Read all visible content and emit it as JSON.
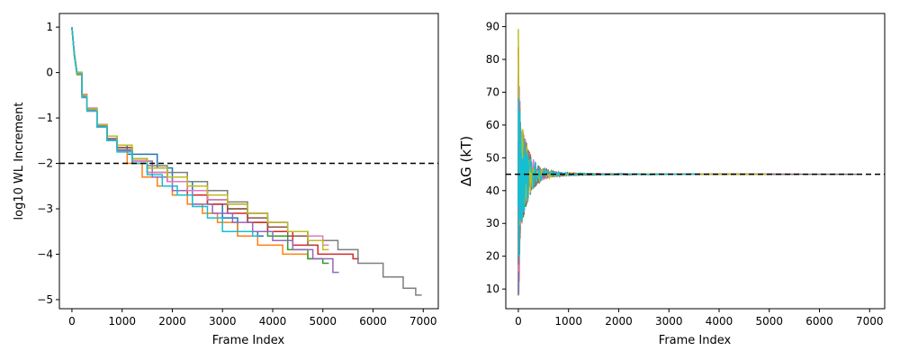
{
  "chart_data": [
    {
      "type": "line",
      "title": "",
      "xlabel": "Frame Index",
      "ylabel": "log10 WL Increment",
      "xlim": [
        -250,
        7300
      ],
      "ylim": [
        -5.2,
        1.3
      ],
      "xticks": [
        0,
        1000,
        2000,
        3000,
        4000,
        5000,
        6000,
        7000
      ],
      "xtick_labels": [
        "0",
        "1000",
        "2000",
        "3000",
        "4000",
        "5000",
        "6000",
        "7000"
      ],
      "yticks": [
        1,
        0,
        -1,
        -2,
        -3,
        -4,
        -5
      ],
      "ytick_labels": [
        "1",
        "0",
        "−1",
        "−2",
        "−3",
        "−4",
        "−5"
      ],
      "grid": false,
      "legend": "none",
      "reference_line": {
        "y": -2,
        "color": "#000000",
        "style": "dashed"
      },
      "series": [
        {
          "color": "#1f77b4",
          "values": [
            [
              0,
              1
            ],
            [
              50,
              0.4
            ],
            [
              100,
              0
            ],
            [
              200,
              -0.5
            ],
            [
              300,
              -0.8
            ],
            [
              500,
              -1.15
            ],
            [
              700,
              -1.4
            ],
            [
              900,
              -1.6
            ],
            [
              1100,
              -1.8
            ],
            [
              1300,
              -1.8
            ],
            [
              1600,
              -1.8
            ],
            [
              1700,
              -2.1
            ],
            [
              2000,
              -2.4
            ],
            [
              2400,
              -2.6
            ],
            [
              2700,
              -2.9
            ],
            [
              3000,
              -3.2
            ],
            [
              3300,
              -3.5
            ],
            [
              3700,
              -3.6
            ]
          ]
        },
        {
          "color": "#ff7f0e",
          "values": [
            [
              0,
              1
            ],
            [
              50,
              0.35
            ],
            [
              100,
              -0.05
            ],
            [
              200,
              -0.55
            ],
            [
              300,
              -0.85
            ],
            [
              500,
              -1.2
            ],
            [
              700,
              -1.5
            ],
            [
              900,
              -1.7
            ],
            [
              1100,
              -2.0
            ],
            [
              1400,
              -2.3
            ],
            [
              1700,
              -2.5
            ],
            [
              2000,
              -2.7
            ],
            [
              2300,
              -2.9
            ],
            [
              2600,
              -3.1
            ],
            [
              2900,
              -3.3
            ],
            [
              3300,
              -3.6
            ],
            [
              3700,
              -3.8
            ],
            [
              4200,
              -4.0
            ],
            [
              4700,
              -4.1
            ]
          ]
        },
        {
          "color": "#2ca02c",
          "values": [
            [
              0,
              1
            ],
            [
              50,
              0.38
            ],
            [
              100,
              0
            ],
            [
              200,
              -0.5
            ],
            [
              300,
              -0.8
            ],
            [
              500,
              -1.2
            ],
            [
              700,
              -1.5
            ],
            [
              900,
              -1.7
            ],
            [
              1200,
              -2.0
            ],
            [
              1500,
              -2.2
            ],
            [
              1900,
              -2.3
            ],
            [
              2300,
              -2.6
            ],
            [
              2700,
              -2.8
            ],
            [
              3100,
              -3.0
            ],
            [
              3500,
              -3.3
            ],
            [
              3900,
              -3.6
            ],
            [
              4300,
              -3.9
            ],
            [
              4700,
              -4.1
            ],
            [
              5000,
              -4.2
            ]
          ]
        },
        {
          "color": "#d62728",
          "values": [
            [
              0,
              1
            ],
            [
              50,
              0.4
            ],
            [
              100,
              0
            ],
            [
              200,
              -0.5
            ],
            [
              300,
              -0.8
            ],
            [
              500,
              -1.15
            ],
            [
              700,
              -1.45
            ],
            [
              900,
              -1.65
            ],
            [
              1200,
              -1.9
            ],
            [
              1500,
              -2.2
            ],
            [
              1900,
              -2.4
            ],
            [
              2300,
              -2.7
            ],
            [
              2700,
              -2.9
            ],
            [
              3100,
              -3.1
            ],
            [
              3500,
              -3.3
            ],
            [
              3900,
              -3.5
            ],
            [
              4400,
              -3.8
            ],
            [
              4900,
              -4.0
            ],
            [
              5600,
              -4.1
            ]
          ]
        },
        {
          "color": "#9467bd",
          "values": [
            [
              0,
              1
            ],
            [
              50,
              0.36
            ],
            [
              100,
              -0.02
            ],
            [
              200,
              -0.52
            ],
            [
              300,
              -0.82
            ],
            [
              500,
              -1.18
            ],
            [
              700,
              -1.48
            ],
            [
              900,
              -1.72
            ],
            [
              1200,
              -1.95
            ],
            [
              1600,
              -2.3
            ],
            [
              2000,
              -2.6
            ],
            [
              2400,
              -2.9
            ],
            [
              2800,
              -3.1
            ],
            [
              3200,
              -3.3
            ],
            [
              3600,
              -3.5
            ],
            [
              4000,
              -3.7
            ],
            [
              4400,
              -3.9
            ],
            [
              4800,
              -4.1
            ],
            [
              5200,
              -4.4
            ]
          ]
        },
        {
          "color": "#8c564b",
          "values": [
            [
              0,
              1
            ],
            [
              50,
              0.37
            ],
            [
              100,
              0
            ],
            [
              200,
              -0.5
            ],
            [
              300,
              -0.8
            ],
            [
              500,
              -1.15
            ],
            [
              700,
              -1.45
            ],
            [
              900,
              -1.65
            ],
            [
              1200,
              -1.9
            ],
            [
              1500,
              -2.1
            ],
            [
              1900,
              -2.3
            ],
            [
              2300,
              -2.6
            ],
            [
              2700,
              -2.8
            ],
            [
              3100,
              -3.0
            ],
            [
              3500,
              -3.2
            ],
            [
              3900,
              -3.4
            ],
            [
              4300,
              -3.6
            ],
            [
              4700,
              -3.8
            ]
          ]
        },
        {
          "color": "#e377c2",
          "values": [
            [
              0,
              1
            ],
            [
              50,
              0.39
            ],
            [
              100,
              0
            ],
            [
              200,
              -0.48
            ],
            [
              300,
              -0.78
            ],
            [
              500,
              -1.15
            ],
            [
              700,
              -1.45
            ],
            [
              900,
              -1.7
            ],
            [
              1200,
              -1.95
            ],
            [
              1500,
              -2.2
            ],
            [
              1900,
              -2.4
            ],
            [
              2300,
              -2.6
            ],
            [
              2700,
              -2.8
            ],
            [
              3100,
              -2.9
            ],
            [
              3500,
              -3.1
            ],
            [
              3900,
              -3.3
            ],
            [
              4300,
              -3.5
            ],
            [
              4700,
              -3.6
            ],
            [
              5000,
              -3.8
            ]
          ]
        },
        {
          "color": "#7f7f7f",
          "values": [
            [
              0,
              1
            ],
            [
              50,
              0.4
            ],
            [
              100,
              0
            ],
            [
              200,
              -0.5
            ],
            [
              300,
              -0.8
            ],
            [
              500,
              -1.15
            ],
            [
              700,
              -1.45
            ],
            [
              900,
              -1.7
            ],
            [
              1200,
              -1.9
            ],
            [
              1500,
              -2.05
            ],
            [
              1900,
              -2.2
            ],
            [
              2300,
              -2.4
            ],
            [
              2700,
              -2.6
            ],
            [
              3100,
              -2.85
            ],
            [
              3500,
              -3.1
            ],
            [
              3900,
              -3.3
            ],
            [
              4300,
              -3.5
            ],
            [
              4700,
              -3.7
            ],
            [
              5300,
              -3.9
            ],
            [
              5700,
              -4.2
            ],
            [
              6200,
              -4.5
            ],
            [
              6600,
              -4.75
            ],
            [
              6850,
              -4.9
            ]
          ]
        },
        {
          "color": "#bcbd22",
          "values": [
            [
              0,
              1
            ],
            [
              50,
              0.38
            ],
            [
              100,
              0
            ],
            [
              200,
              -0.5
            ],
            [
              300,
              -0.8
            ],
            [
              500,
              -1.15
            ],
            [
              700,
              -1.4
            ],
            [
              900,
              -1.6
            ],
            [
              1200,
              -1.9
            ],
            [
              1500,
              -2.1
            ],
            [
              1900,
              -2.3
            ],
            [
              2300,
              -2.5
            ],
            [
              2700,
              -2.7
            ],
            [
              3100,
              -2.9
            ],
            [
              3500,
              -3.1
            ],
            [
              3900,
              -3.3
            ],
            [
              4300,
              -3.5
            ],
            [
              4700,
              -3.7
            ],
            [
              5000,
              -3.9
            ]
          ]
        },
        {
          "color": "#17becf",
          "values": [
            [
              0,
              1
            ],
            [
              50,
              0.36
            ],
            [
              100,
              -0.03
            ],
            [
              200,
              -0.55
            ],
            [
              300,
              -0.85
            ],
            [
              500,
              -1.2
            ],
            [
              700,
              -1.5
            ],
            [
              900,
              -1.75
            ],
            [
              1200,
              -2.0
            ],
            [
              1500,
              -2.25
            ],
            [
              1800,
              -2.5
            ],
            [
              2100,
              -2.7
            ],
            [
              2400,
              -2.95
            ],
            [
              2700,
              -3.2
            ],
            [
              3000,
              -3.5
            ],
            [
              3200,
              -3.5
            ],
            [
              3600,
              -3.6
            ]
          ]
        }
      ]
    },
    {
      "type": "line",
      "title": "",
      "xlabel": "Frame Index",
      "ylabel": "ΔG (kT)",
      "xlim": [
        -250,
        7300
      ],
      "ylim": [
        4,
        94
      ],
      "xticks": [
        0,
        1000,
        2000,
        3000,
        4000,
        5000,
        6000,
        7000
      ],
      "xtick_labels": [
        "0",
        "1000",
        "2000",
        "3000",
        "4000",
        "5000",
        "6000",
        "7000"
      ],
      "yticks": [
        10,
        20,
        30,
        40,
        50,
        60,
        70,
        80,
        90
      ],
      "ytick_labels": [
        "10",
        "20",
        "30",
        "40",
        "50",
        "60",
        "70",
        "80",
        "90"
      ],
      "grid": false,
      "legend": "none",
      "reference_line": {
        "y": 45,
        "color": "#000000",
        "style": "dashed"
      },
      "colors": [
        "#1f77b4",
        "#ff7f0e",
        "#2ca02c",
        "#d62728",
        "#9467bd",
        "#8c564b",
        "#e377c2",
        "#7f7f7f",
        "#bcbd22",
        "#17becf"
      ],
      "series_end_x": [
        3700,
        4700,
        5000,
        5600,
        5200,
        4700,
        5000,
        6850,
        5000,
        3600
      ],
      "converged_value": 45,
      "spike_range": [
        8,
        90
      ]
    }
  ]
}
